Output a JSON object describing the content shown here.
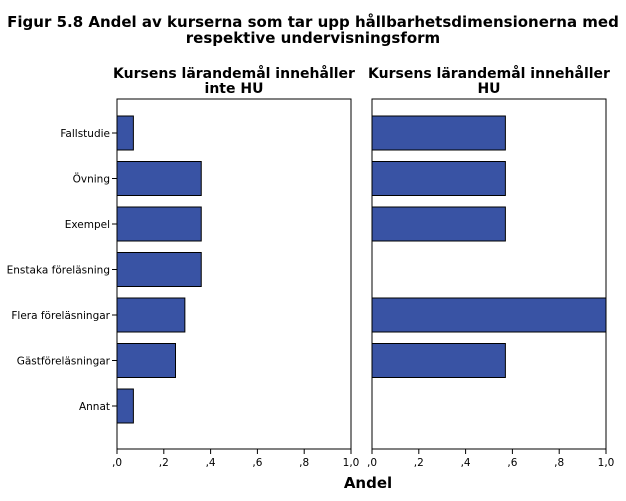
{
  "figure": {
    "title_line1": "Figur 5.8 Andel av kurserna som tar upp hållbarhetsdimensionerna med",
    "title_line2": "respektive undervisningsform"
  },
  "chart_data": {
    "type": "bar",
    "orientation": "horizontal",
    "categories": [
      "Fallstudie",
      "Övning",
      "Exempel",
      "Enstaka föreläsning",
      "Flera föreläsningar",
      "Gästföreläsningar",
      "Annat"
    ],
    "xlabel": "Andel",
    "xlim": [
      0,
      1.0
    ],
    "xticks": [
      ",0",
      ",2",
      ",4",
      ",6",
      ",8",
      "1,0"
    ],
    "grid": false,
    "bar_color": "#3953a4",
    "panels": [
      {
        "title_line1": "Kursens lärandemål innehåller",
        "title_line2": "inte HU",
        "values": [
          0.07,
          0.36,
          0.36,
          0.36,
          0.29,
          0.25,
          0.07
        ]
      },
      {
        "title_line1": "Kursens lärandemål innehåller",
        "title_line2": "HU",
        "values": [
          0.57,
          0.57,
          0.57,
          0.0,
          1.0,
          0.57,
          0.0
        ]
      }
    ]
  }
}
